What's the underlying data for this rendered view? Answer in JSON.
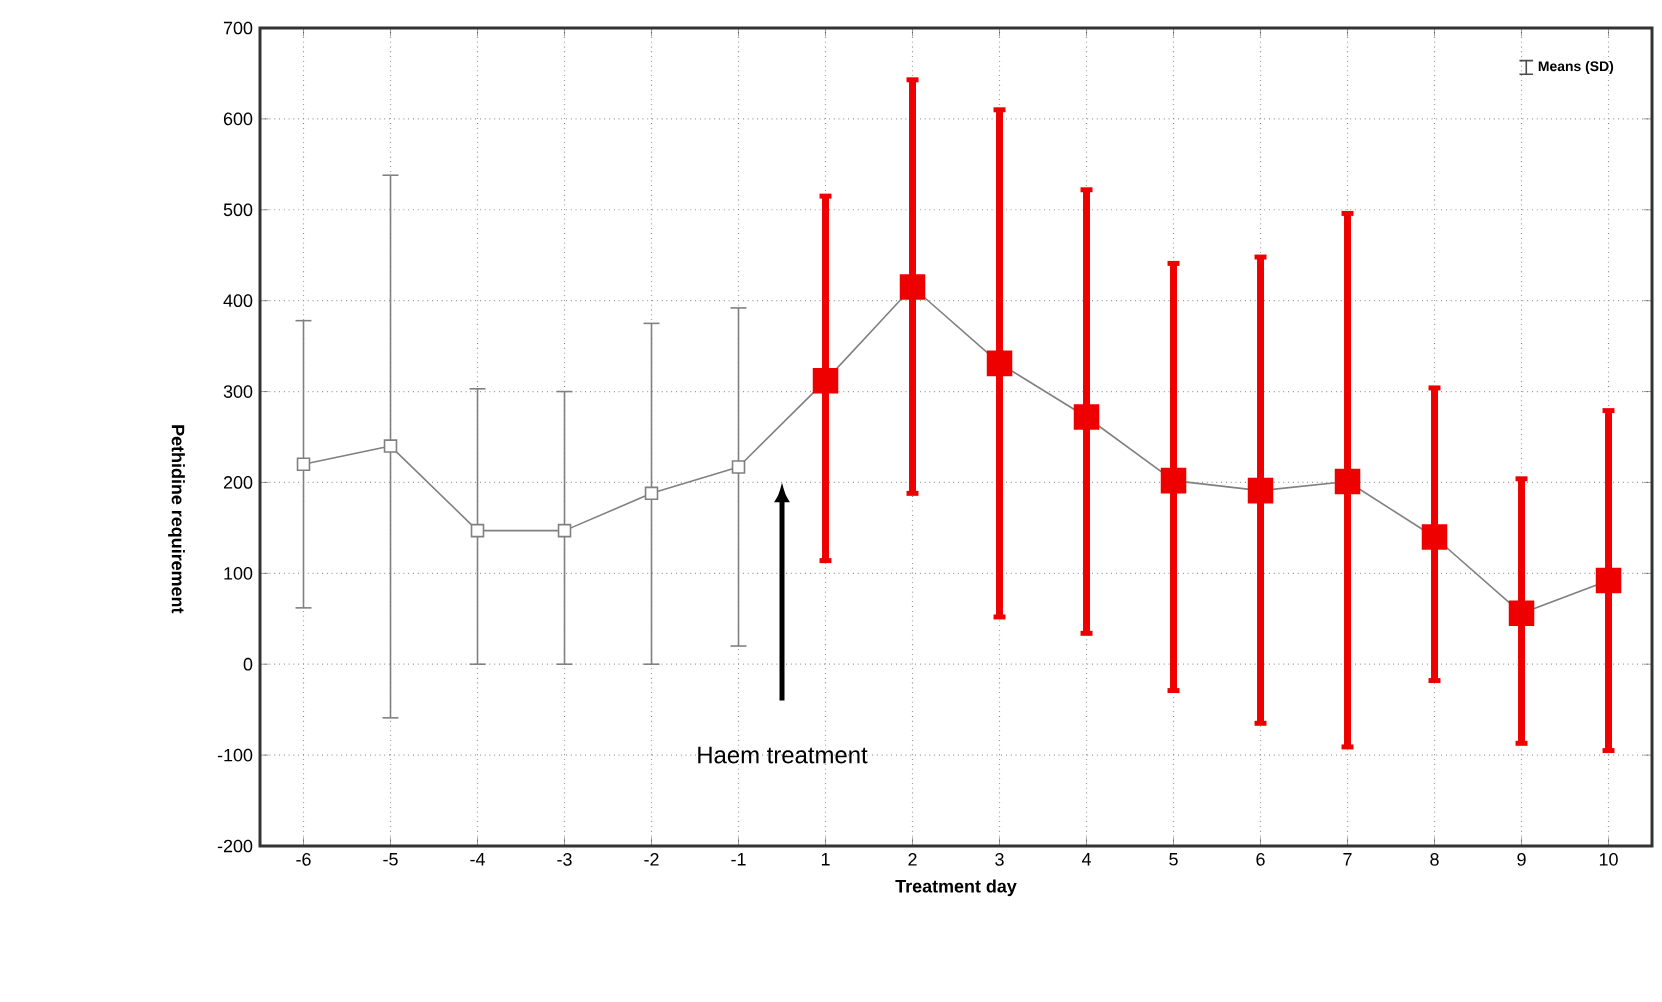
{
  "chart_data": {
    "type": "line",
    "xlabel": "Treatment day",
    "ylabel": "Pethidine requirement",
    "categories": [
      "-6",
      "-5",
      "-4",
      "-3",
      "-2",
      "-1",
      "1",
      "2",
      "3",
      "4",
      "5",
      "6",
      "7",
      "8",
      "9",
      "10"
    ],
    "series": [
      {
        "name": "Means (SD)",
        "color": "#808080",
        "colors": [
          "#808080",
          "#808080",
          "#808080",
          "#808080",
          "#808080",
          "#808080",
          "#ee0000",
          "#ee0000",
          "#ee0000",
          "#ee0000",
          "#ee0000",
          "#ee0000",
          "#ee0000",
          "#ee0000",
          "#ee0000",
          "#ee0000"
        ],
        "values": [
          220,
          240,
          147,
          147,
          188,
          217,
          312,
          415,
          331,
          272,
          202,
          191,
          201,
          140,
          56,
          92
        ],
        "errors": [
          [
            62,
            378
          ],
          [
            -59,
            538
          ],
          [
            0,
            303
          ],
          [
            0,
            300
          ],
          [
            0,
            375
          ],
          [
            20,
            392
          ],
          [
            114,
            515
          ],
          [
            188,
            643
          ],
          [
            52,
            610
          ],
          [
            34,
            522
          ],
          [
            -29,
            441
          ],
          [
            -65,
            448
          ],
          [
            -91,
            496
          ],
          [
            -18,
            304
          ],
          [
            -87,
            204
          ],
          [
            -95,
            279
          ]
        ]
      }
    ],
    "ylim": [
      -200,
      700
    ],
    "yticks": [
      -200,
      -100,
      0,
      100,
      200,
      300,
      400,
      500,
      600,
      700
    ],
    "grid": true,
    "legend": "top right",
    "marker": "square",
    "line_style": "solid",
    "annotations": [
      "Haem treatment"
    ]
  }
}
